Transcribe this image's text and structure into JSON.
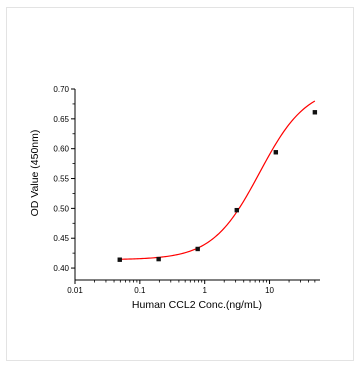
{
  "chart_data": {
    "type": "scatter",
    "title": "",
    "xlabel": "Human CCL2 Conc.(ng/mL)",
    "ylabel": "OD Value (450nm)",
    "x_scale": "log",
    "xlim": [
      0.01,
      60
    ],
    "ylim": [
      0.38,
      0.7
    ],
    "x_ticks": [
      {
        "value": 0.01,
        "label": "0.01"
      },
      {
        "value": 0.1,
        "label": "0.1"
      },
      {
        "value": 1,
        "label": "1"
      },
      {
        "value": 10,
        "label": "10"
      }
    ],
    "y_ticks": [
      {
        "value": 0.4,
        "label": "0.40"
      },
      {
        "value": 0.45,
        "label": "0.45"
      },
      {
        "value": 0.5,
        "label": "0.50"
      },
      {
        "value": 0.55,
        "label": "0.55"
      },
      {
        "value": 0.6,
        "label": "0.60"
      },
      {
        "value": 0.65,
        "label": "0.65"
      },
      {
        "value": 0.7,
        "label": "0.70"
      }
    ],
    "grid": false,
    "series": [
      {
        "points": [
          {
            "x": 0.049,
            "y": 0.414
          },
          {
            "x": 0.195,
            "y": 0.415
          },
          {
            "x": 0.78,
            "y": 0.432
          },
          {
            "x": 3.125,
            "y": 0.497
          },
          {
            "x": 12.5,
            "y": 0.594
          },
          {
            "x": 50,
            "y": 0.661
          }
        ],
        "marker_color": "#111111",
        "fit_curve": {
          "model": "4PL",
          "bottom": 0.414,
          "top": 0.705,
          "ec50": 7.0,
          "hill": 1.2,
          "x_range": [
            0.049,
            50
          ],
          "color": "#ff0000"
        }
      }
    ]
  }
}
